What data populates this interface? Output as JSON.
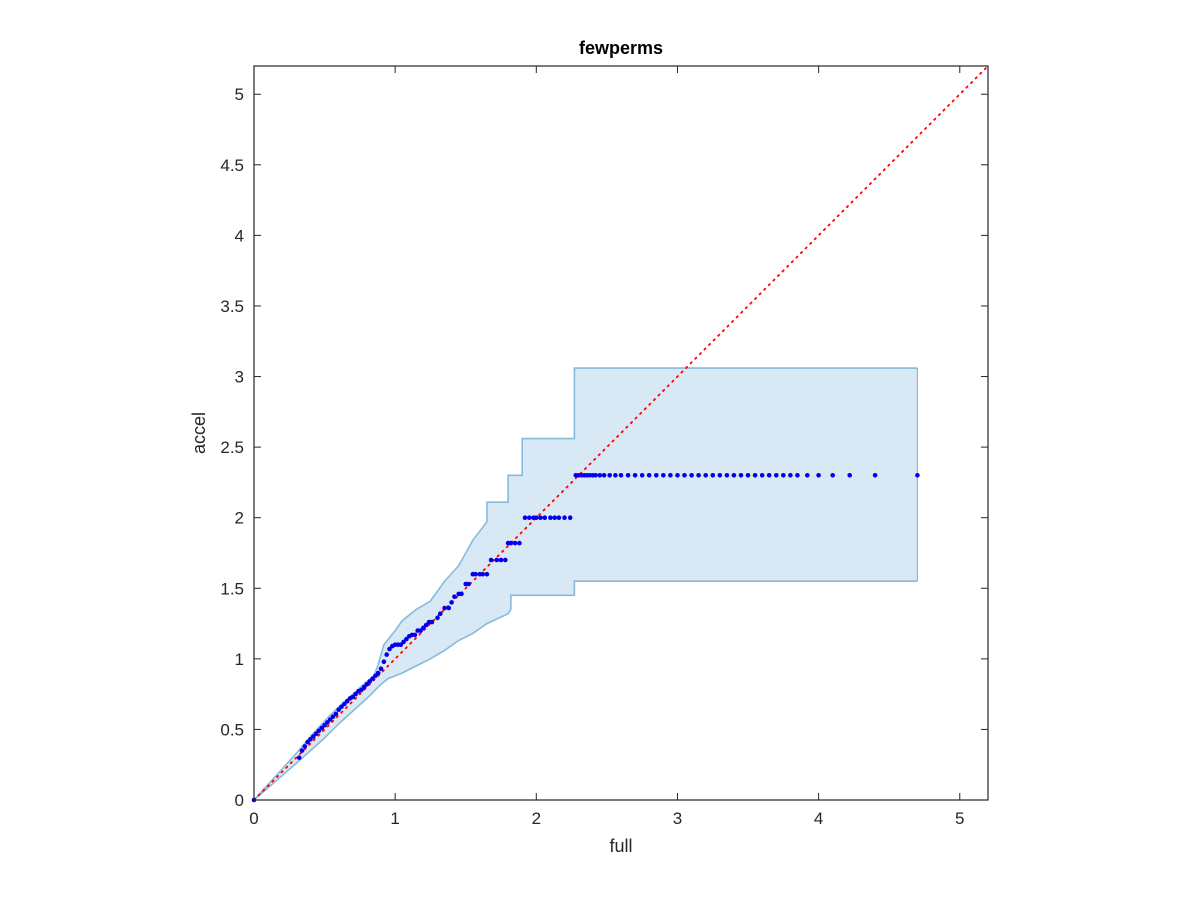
{
  "chart_data": {
    "type": "scatter",
    "title": "fewperms",
    "xlabel": "full",
    "ylabel": "accel",
    "xlim": [
      0,
      5.2
    ],
    "ylim": [
      0,
      5.2
    ],
    "xticks": [
      0,
      1,
      2,
      3,
      4,
      5
    ],
    "yticks": [
      0,
      0.5,
      1,
      1.5,
      2,
      2.5,
      3,
      3.5,
      4,
      4.5,
      5
    ],
    "xtick_labels": [
      "0",
      "1",
      "2",
      "3",
      "4",
      "5"
    ],
    "ytick_labels": [
      "0",
      "0.5",
      "1",
      "1.5",
      "2",
      "2.5",
      "3",
      "3.5",
      "4",
      "4.5",
      "5"
    ],
    "grid": false,
    "box": true,
    "reference_line": {
      "from": [
        0,
        0
      ],
      "to": [
        5.2,
        5.2
      ],
      "style": "dotted",
      "color": "#ff0000"
    },
    "band": {
      "color_fill": "#d8e8f4",
      "color_edge": "#86bbdb",
      "upper": [
        [
          0,
          0
        ],
        [
          0.3,
          0.33
        ],
        [
          0.4,
          0.45
        ],
        [
          0.5,
          0.56
        ],
        [
          0.6,
          0.66
        ],
        [
          0.7,
          0.75
        ],
        [
          0.8,
          0.84
        ],
        [
          0.85,
          0.88
        ],
        [
          0.88,
          0.96
        ],
        [
          0.92,
          1.1
        ],
        [
          1.0,
          1.2
        ],
        [
          1.05,
          1.27
        ],
        [
          1.15,
          1.35
        ],
        [
          1.25,
          1.41
        ],
        [
          1.35,
          1.55
        ],
        [
          1.45,
          1.66
        ],
        [
          1.55,
          1.84
        ],
        [
          1.65,
          1.97
        ],
        [
          1.65,
          2.11
        ],
        [
          1.8,
          2.11
        ],
        [
          1.8,
          2.3
        ],
        [
          1.9,
          2.3
        ],
        [
          1.9,
          2.56
        ],
        [
          2.27,
          2.56
        ],
        [
          2.27,
          3.06
        ],
        [
          4.7,
          3.06
        ]
      ],
      "lower": [
        [
          0,
          0
        ],
        [
          0.3,
          0.26
        ],
        [
          0.4,
          0.35
        ],
        [
          0.5,
          0.44
        ],
        [
          0.6,
          0.54
        ],
        [
          0.7,
          0.63
        ],
        [
          0.8,
          0.72
        ],
        [
          0.9,
          0.82
        ],
        [
          0.95,
          0.86
        ],
        [
          1.05,
          0.9
        ],
        [
          1.15,
          0.95
        ],
        [
          1.25,
          1.0
        ],
        [
          1.35,
          1.06
        ],
        [
          1.45,
          1.13
        ],
        [
          1.55,
          1.18
        ],
        [
          1.65,
          1.25
        ],
        [
          1.8,
          1.32
        ],
        [
          1.82,
          1.35
        ],
        [
          1.82,
          1.45
        ],
        [
          2.27,
          1.45
        ],
        [
          2.27,
          1.55
        ],
        [
          4.7,
          1.55
        ]
      ]
    },
    "series": [
      {
        "color": "#0000ee",
        "x": [
          0,
          0.32,
          0.34,
          0.36,
          0.38,
          0.4,
          0.42,
          0.44,
          0.46,
          0.48,
          0.5,
          0.52,
          0.54,
          0.56,
          0.58,
          0.6,
          0.62,
          0.64,
          0.66,
          0.68,
          0.7,
          0.72,
          0.74,
          0.76,
          0.78,
          0.8,
          0.82,
          0.84,
          0.86,
          0.88,
          0.9,
          0.92,
          0.94,
          0.96,
          0.98,
          1.0,
          1.02,
          1.04,
          1.06,
          1.08,
          1.1,
          1.12,
          1.14,
          1.16,
          1.18,
          1.2,
          1.22,
          1.24,
          1.26,
          1.3,
          1.32,
          1.35,
          1.38,
          1.4,
          1.42,
          1.45,
          1.47,
          1.5,
          1.52,
          1.55,
          1.57,
          1.6,
          1.62,
          1.65,
          1.68,
          1.72,
          1.75,
          1.78,
          1.8,
          1.82,
          1.85,
          1.88,
          1.92,
          1.95,
          1.98,
          2.0,
          2.03,
          2.06,
          2.1,
          2.13,
          2.16,
          2.2,
          2.24,
          2.28,
          2.3,
          2.32,
          2.34,
          2.36,
          2.38,
          2.4,
          2.42,
          2.45,
          2.48,
          2.52,
          2.56,
          2.6,
          2.65,
          2.7,
          2.75,
          2.8,
          2.85,
          2.9,
          2.95,
          3.0,
          3.05,
          3.1,
          3.15,
          3.2,
          3.25,
          3.3,
          3.35,
          3.4,
          3.45,
          3.5,
          3.55,
          3.6,
          3.65,
          3.7,
          3.75,
          3.8,
          3.85,
          3.92,
          4.0,
          4.1,
          4.22,
          4.4,
          4.7
        ],
        "y": [
          0,
          0.3,
          0.35,
          0.38,
          0.41,
          0.43,
          0.45,
          0.47,
          0.49,
          0.51,
          0.53,
          0.55,
          0.57,
          0.59,
          0.61,
          0.64,
          0.66,
          0.68,
          0.7,
          0.72,
          0.73,
          0.75,
          0.77,
          0.78,
          0.8,
          0.82,
          0.84,
          0.86,
          0.88,
          0.9,
          0.93,
          0.98,
          1.03,
          1.07,
          1.09,
          1.1,
          1.1,
          1.1,
          1.12,
          1.14,
          1.16,
          1.17,
          1.17,
          1.2,
          1.2,
          1.22,
          1.24,
          1.26,
          1.26,
          1.29,
          1.32,
          1.36,
          1.36,
          1.4,
          1.44,
          1.46,
          1.46,
          1.53,
          1.53,
          1.6,
          1.6,
          1.6,
          1.6,
          1.6,
          1.7,
          1.7,
          1.7,
          1.7,
          1.82,
          1.82,
          1.82,
          1.82,
          2.0,
          2.0,
          2.0,
          2.0,
          2.0,
          2.0,
          2.0,
          2.0,
          2.0,
          2.0,
          2.0,
          2.3,
          2.3,
          2.3,
          2.3,
          2.3,
          2.3,
          2.3,
          2.3,
          2.3,
          2.3,
          2.3,
          2.3,
          2.3,
          2.3,
          2.3,
          2.3,
          2.3,
          2.3,
          2.3,
          2.3,
          2.3,
          2.3,
          2.3,
          2.3,
          2.3,
          2.3,
          2.3,
          2.3,
          2.3,
          2.3,
          2.3,
          2.3,
          2.3,
          2.3,
          2.3,
          2.3,
          2.3,
          2.3,
          2.3,
          2.3,
          2.3,
          2.3,
          2.3,
          2.3
        ]
      }
    ]
  }
}
